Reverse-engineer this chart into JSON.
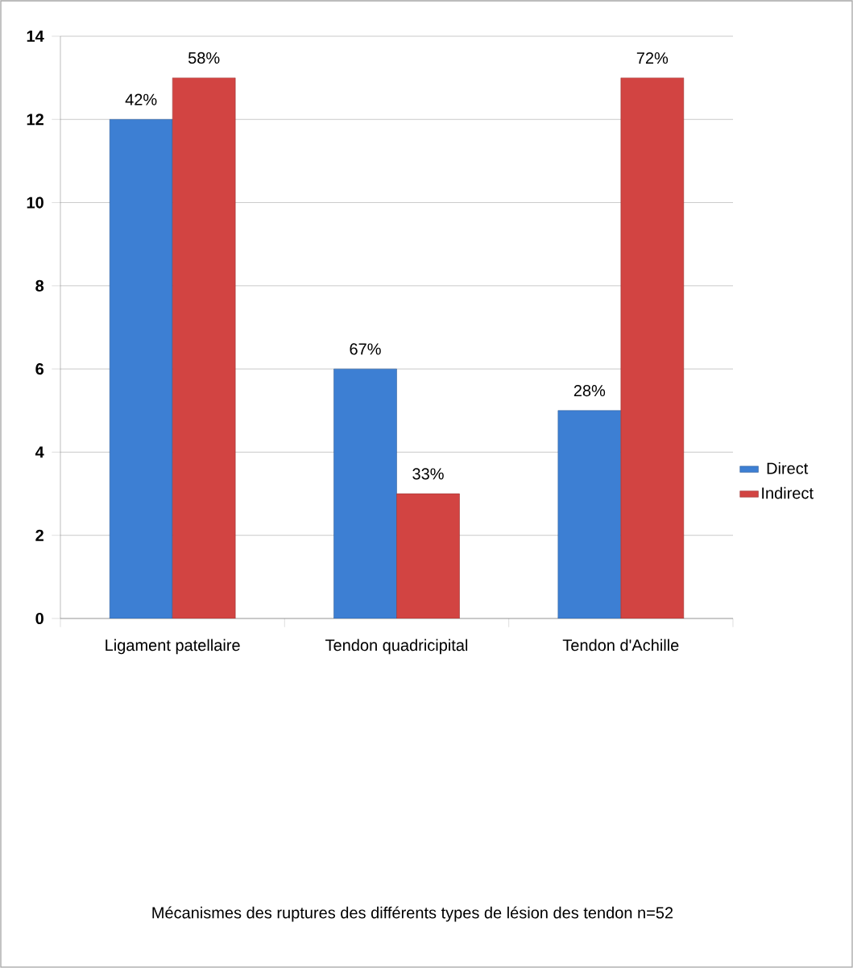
{
  "chart_data": {
    "type": "bar",
    "categories": [
      "Ligament patellaire",
      "Tendon quadricipital",
      "Tendon d'Achille"
    ],
    "series": [
      {
        "name": "Direct",
        "color": "#3d7fd3",
        "values": [
          12,
          6,
          5
        ]
      },
      {
        "name": "Indirect",
        "color": "#d24442",
        "values": [
          13,
          3,
          13
        ]
      }
    ],
    "annotations": [
      {
        "text": "42%",
        "x": "Ligament patellaire",
        "y": 12
      },
      {
        "text": "67%",
        "x": "Tendon quadricipital",
        "y": 6
      },
      {
        "text": "28%",
        "x": "Tendon d'Achille",
        "y": 5
      },
      {
        "text": "58%",
        "x": "Ligament patellaire",
        "y": 13
      },
      {
        "text": "33%",
        "x": "Tendon quadricipital",
        "y": 3
      },
      {
        "text": "72%",
        "x": "Tendon d'Achille",
        "y": 13
      },
      "Mécanismes  des ruptures  des différents types de lésion des tendon n=52"
    ],
    "ylim": [
      0,
      14
    ],
    "yticks": [
      0,
      2,
      4,
      6,
      8,
      10,
      12,
      14
    ],
    "grid": "y",
    "legend": "right"
  }
}
